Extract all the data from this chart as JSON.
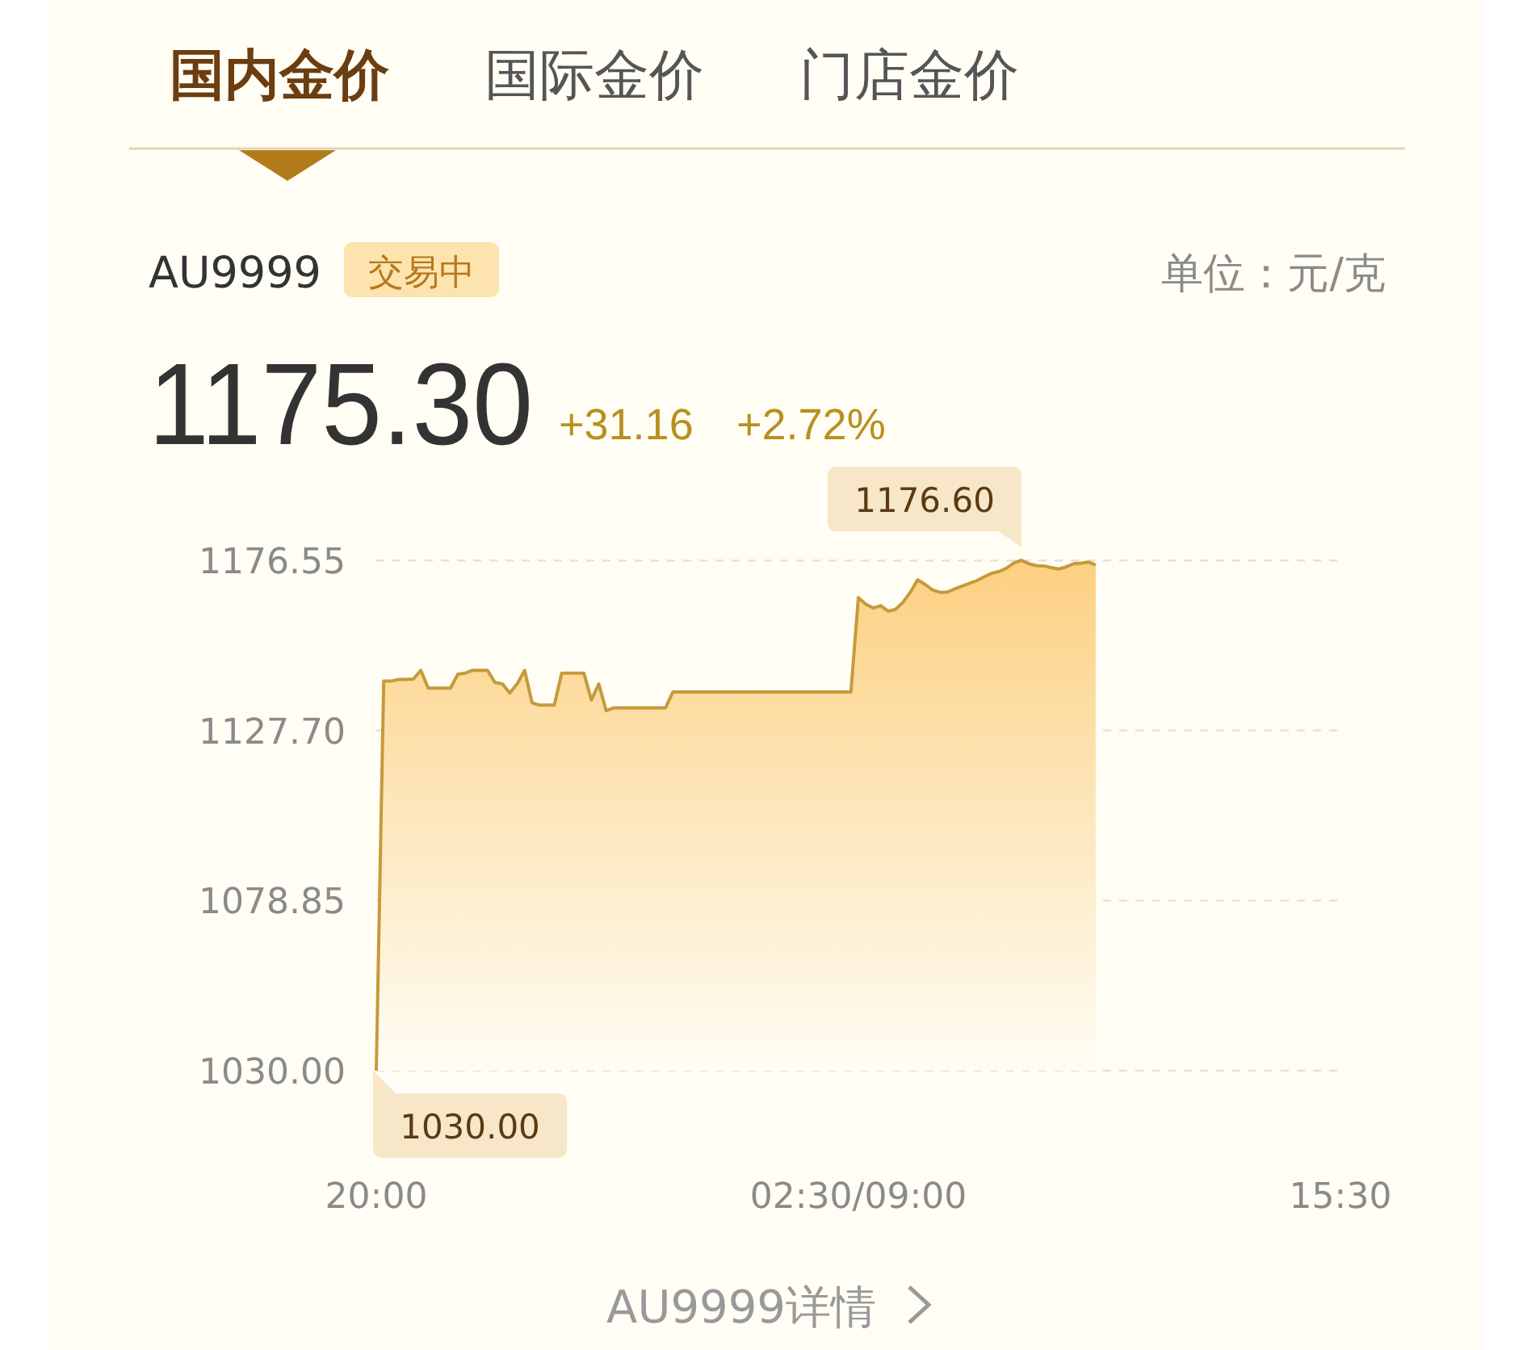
{
  "chart_data": {
    "type": "area",
    "title": "AU9999",
    "annotations": [
      "国内金价",
      "国际金价",
      "门店金价",
      "交易中",
      "1175.30",
      "+31.16",
      "+2.72%",
      "AU9999详情",
      "单位：元/克",
      "1176.60",
      {
        "text": "1030.00",
        "x": "20:00",
        "y": 1030
      }
    ],
    "categories": [
      "20:00",
      null,
      null,
      null,
      null,
      null,
      null,
      null,
      null,
      null,
      null,
      null,
      null,
      null,
      null,
      null,
      null,
      null,
      null,
      null,
      null,
      null,
      null,
      null,
      null,
      null,
      null,
      null,
      null,
      null,
      null,
      null,
      null,
      null,
      null,
      null,
      null,
      null,
      null,
      null,
      null,
      null,
      null,
      null,
      null,
      null,
      null,
      null,
      null,
      null,
      null,
      null,
      null,
      null,
      null,
      null,
      null,
      null,
      null,
      null,
      null,
      null,
      null,
      null,
      null,
      "02:30/09:00",
      null,
      null,
      null,
      null,
      null,
      null,
      null,
      null,
      null,
      null,
      null,
      null,
      null,
      null,
      null,
      null,
      null,
      null,
      null,
      null,
      null,
      null,
      null,
      null,
      null,
      null,
      null,
      null,
      null,
      null,
      null,
      null,
      null,
      null,
      null,
      null,
      null,
      null,
      null,
      null,
      null,
      null,
      null,
      null,
      null,
      null,
      null,
      null,
      null,
      null,
      null,
      null,
      null,
      null,
      null,
      null,
      null,
      null,
      null,
      null,
      null,
      null,
      null,
      null,
      "15:30"
    ],
    "series": [
      {
        "color": "#c69a3c",
        "values": [
          1030,
          1141.9,
          1141.9,
          1142.4,
          1142.4,
          1142.5,
          1145.0,
          1139.9,
          1139.9,
          1139.9,
          1139.9,
          1143.9,
          1144.2,
          1145.0,
          1145.0,
          1145.0,
          1141.5,
          1141.1,
          1138.5,
          1141.1,
          1145.0,
          1135.7,
          1135.0,
          1135.0,
          1135.0,
          1144.2,
          1144.2,
          1144.2,
          1144.2,
          1136.5,
          1141.1,
          1133.4,
          1134.2,
          1134.2,
          1134.2,
          1134.2,
          1134.2,
          1134.2,
          1134.2,
          1134.2,
          1138.8,
          1138.8,
          1138.8,
          1138.8,
          1138.8,
          1138.8,
          1138.8,
          1138.8,
          1138.8,
          1138.8,
          1138.8,
          1138.8,
          1138.8,
          1138.8,
          1138.8,
          1138.8,
          1138.8,
          1138.8,
          1138.8,
          1138.8,
          1138.8,
          1138.8,
          1138.8,
          1138.8,
          1138.8,
          1165.9,
          1164.0,
          1162.9,
          1163.6,
          1162.0,
          1162.5,
          1164.5,
          1167.4,
          1171.0,
          1169.7,
          1168.1,
          1167.4,
          1167.5,
          1168.4,
          1169.2,
          1170.0,
          1170.8,
          1171.9,
          1172.9,
          1173.4,
          1174.4,
          1175.9,
          1176.6,
          1175.6,
          1175.1,
          1175.0,
          1174.5,
          1174.1,
          1174.7,
          1175.6,
          1175.8,
          1176.1,
          1175.3,
          null,
          null,
          null,
          null,
          null,
          null,
          null,
          null,
          null,
          null,
          null,
          null,
          null,
          null,
          null,
          null,
          null,
          null,
          null,
          null,
          null,
          null,
          null,
          null,
          null,
          null,
          null,
          null,
          null,
          null,
          null,
          null,
          null
        ]
      }
    ],
    "ylim": [
      1030,
      1176.6
    ],
    "yticks": [
      {
        "value": 1030,
        "label": "1030.00"
      },
      {
        "value": 1078.85,
        "label": "1078.85"
      },
      {
        "value": 1127.7,
        "label": "1127.70"
      },
      {
        "value": 1176.55,
        "label": "1176.55"
      }
    ],
    "grid": "y"
  }
}
